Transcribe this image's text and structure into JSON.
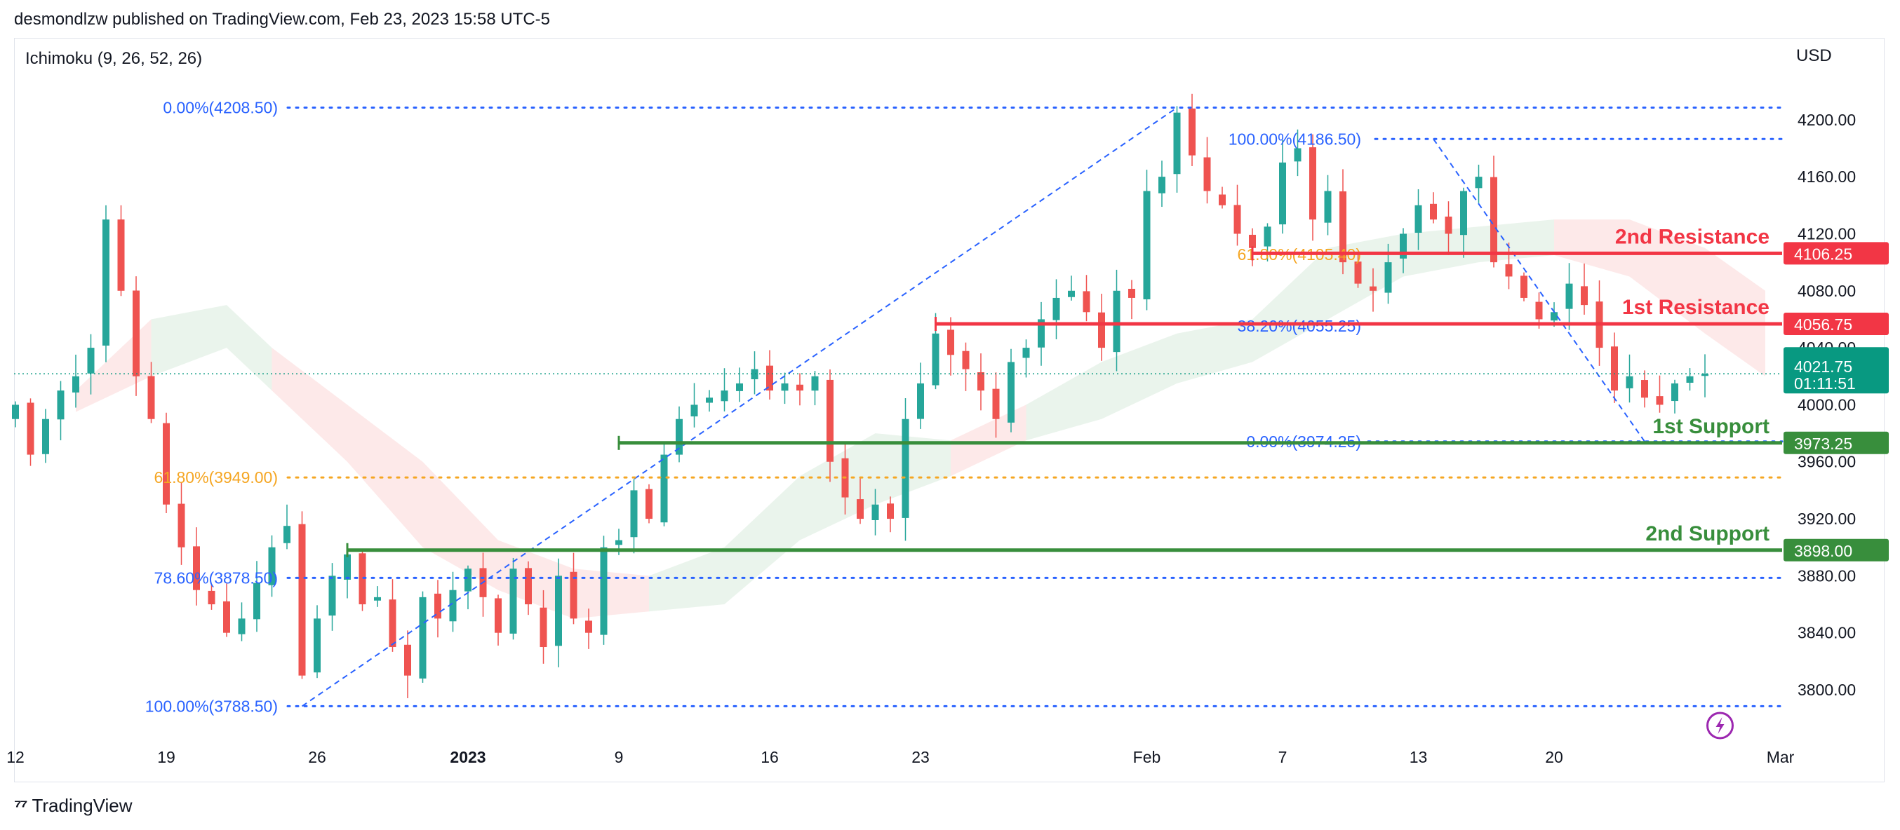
{
  "header": {
    "published": "desmondlzw published on TradingView.com, Feb 23, 2023 15:58 UTC-5"
  },
  "indicator_label": "Ichimoku (9, 26, 52, 26)",
  "currency": "USD",
  "footer": {
    "brand": "TradingView",
    "logo_icon": "tradingview-logo-icon"
  },
  "colors": {
    "up": "#26a69a",
    "down": "#ef5350",
    "resistance": "#f23645",
    "support": "#388e3c",
    "fib_blue": "#2962ff",
    "fib_orange": "#f5a623",
    "cloud_red": "#fde7e7",
    "cloud_green": "#e8f3ea",
    "current_price": "#089981",
    "lightning": "#9c27b0"
  },
  "chart_data": {
    "type": "candlestick",
    "symbol_note": "",
    "ylim": [
      3770,
      4225
    ],
    "y_ticks": [
      "4200.00",
      "4160.00",
      "4120.00",
      "4080.00",
      "4040.00",
      "4000.00",
      "3960.00",
      "3920.00",
      "3880.00",
      "3840.00",
      "3800.00"
    ],
    "x_ticks": [
      {
        "label": "12",
        "bar": 0
      },
      {
        "label": "19",
        "bar": 10
      },
      {
        "label": "26",
        "bar": 20
      },
      {
        "label": "2023",
        "bar": 30,
        "bold": true
      },
      {
        "label": "9",
        "bar": 40
      },
      {
        "label": "16",
        "bar": 50
      },
      {
        "label": "23",
        "bar": 60
      },
      {
        "label": "Feb",
        "bar": 75
      },
      {
        "label": "7",
        "bar": 84
      },
      {
        "label": "13",
        "bar": 93
      },
      {
        "label": "20",
        "bar": 102
      },
      {
        "label": "Mar",
        "bar": 117
      }
    ],
    "horizontal_levels": [
      {
        "name": "2nd Resistance",
        "label": "2nd Resistance",
        "value": 4106.25,
        "tag": "4106.25",
        "kind": "resistance",
        "from_bar": 82
      },
      {
        "name": "1st Resistance",
        "label": "1st Resistance",
        "value": 4056.75,
        "tag": "4056.75",
        "kind": "resistance",
        "from_bar": 61
      },
      {
        "name": "1st Support",
        "label": "1st Support",
        "value": 3973.25,
        "tag": "3973.25",
        "kind": "support",
        "from_bar": 40
      },
      {
        "name": "2nd Support",
        "label": "2nd Support",
        "value": 3898.0,
        "tag": "3898.00",
        "kind": "support",
        "from_bar": 22
      }
    ],
    "current_price": {
      "value": 4021.75,
      "tag": "4021.75",
      "countdown": "01:11:51"
    },
    "fib_left": [
      {
        "label": "0.00%(4208.50)",
        "value": 4208.5,
        "color": "blue"
      },
      {
        "label": "61.80%(3949.00)",
        "value": 3949.0,
        "color": "orange"
      },
      {
        "label": "78.60%(3878.50)",
        "value": 3878.5,
        "color": "blue"
      },
      {
        "label": "100.00%(3788.50)",
        "value": 3788.5,
        "color": "blue"
      }
    ],
    "fib_right": [
      {
        "label": "100.00%(4186.50)",
        "value": 4186.5,
        "color": "blue"
      },
      {
        "label": "61.80%(4105.40)",
        "value": 4105.4,
        "color": "orange"
      },
      {
        "label": "38.20%(4055.25)",
        "value": 4055.25,
        "color": "blue"
      },
      {
        "label": "0.00%(3974.25)",
        "value": 3974.25,
        "color": "blue"
      }
    ],
    "fib_left_trend": {
      "from_bar": 19,
      "from": 3788.5,
      "to_bar": 77,
      "to": 4208.5
    },
    "fib_right_trend": {
      "from_bar": 94,
      "from": 4186.5,
      "to_bar": 108,
      "to": 3974.25
    },
    "closes": [
      4000,
      3965,
      3990,
      4010,
      4020,
      4040,
      4130,
      4080,
      4020,
      3990,
      3930,
      3900,
      3870,
      3860,
      3840,
      3850,
      3875,
      3900,
      3915,
      3810,
      3850,
      3880,
      3895,
      3860,
      3865,
      3830,
      3810,
      3865,
      3850,
      3870,
      3885,
      3865,
      3840,
      3885,
      3860,
      3830,
      3880,
      3850,
      3840,
      3900,
      3905,
      3940,
      3920,
      3965,
      3990,
      4000,
      4005,
      4010,
      4015,
      4025,
      4010,
      4015,
      4010,
      4020,
      3960,
      3935,
      3920,
      3930,
      3920,
      3990,
      4015,
      4050,
      4035,
      4025,
      4010,
      3990,
      4030,
      4040,
      4060,
      4075,
      4080,
      4065,
      4040,
      4080,
      4075,
      4150,
      4160,
      4205,
      4175,
      4150,
      4140,
      4120,
      4110,
      4125,
      4170,
      4180,
      4130,
      4150,
      4100,
      4085,
      4080,
      4100,
      4120,
      4140,
      4130,
      4120,
      4150,
      4160,
      4100,
      4090,
      4075,
      4060,
      4065,
      4085,
      4070,
      4040,
      4010,
      4020,
      4005,
      4000,
      4015,
      4020,
      4021.75
    ],
    "ichimoku_cloud": [
      {
        "bar": 4,
        "top": 4010,
        "bot": 3995,
        "color": "red"
      },
      {
        "bar": 9,
        "top": 4060,
        "bot": 4020,
        "color": "green"
      },
      {
        "bar": 14,
        "top": 4070,
        "bot": 4040,
        "color": "green"
      },
      {
        "bar": 17,
        "top": 4040,
        "bot": 4010,
        "color": "red"
      },
      {
        "bar": 22,
        "top": 4000,
        "bot": 3960,
        "color": "red"
      },
      {
        "bar": 27,
        "top": 3960,
        "bot": 3900,
        "color": "red"
      },
      {
        "bar": 32,
        "top": 3905,
        "bot": 3870,
        "color": "red"
      },
      {
        "bar": 37,
        "top": 3885,
        "bot": 3850,
        "color": "red"
      },
      {
        "bar": 42,
        "top": 3880,
        "bot": 3855,
        "color": "green"
      },
      {
        "bar": 47,
        "top": 3900,
        "bot": 3860,
        "color": "green"
      },
      {
        "bar": 52,
        "top": 3950,
        "bot": 3905,
        "color": "green"
      },
      {
        "bar": 57,
        "top": 3980,
        "bot": 3930,
        "color": "green"
      },
      {
        "bar": 62,
        "top": 3975,
        "bot": 3950,
        "color": "red"
      },
      {
        "bar": 67,
        "top": 4000,
        "bot": 3975,
        "color": "green"
      },
      {
        "bar": 72,
        "top": 4030,
        "bot": 3990,
        "color": "green"
      },
      {
        "bar": 77,
        "top": 4050,
        "bot": 4015,
        "color": "green"
      },
      {
        "bar": 82,
        "top": 4060,
        "bot": 4030,
        "color": "green"
      },
      {
        "bar": 87,
        "top": 4110,
        "bot": 4060,
        "color": "green"
      },
      {
        "bar": 92,
        "top": 4120,
        "bot": 4090,
        "color": "green"
      },
      {
        "bar": 97,
        "top": 4125,
        "bot": 4100,
        "color": "green"
      },
      {
        "bar": 102,
        "top": 4130,
        "bot": 4105,
        "color": "red"
      },
      {
        "bar": 107,
        "top": 4130,
        "bot": 4090,
        "color": "red"
      },
      {
        "bar": 112,
        "top": 4110,
        "bot": 4050,
        "color": "red"
      },
      {
        "bar": 116,
        "top": 4080,
        "bot": 4020,
        "color": "red"
      }
    ],
    "grid": false,
    "legend": "none"
  }
}
